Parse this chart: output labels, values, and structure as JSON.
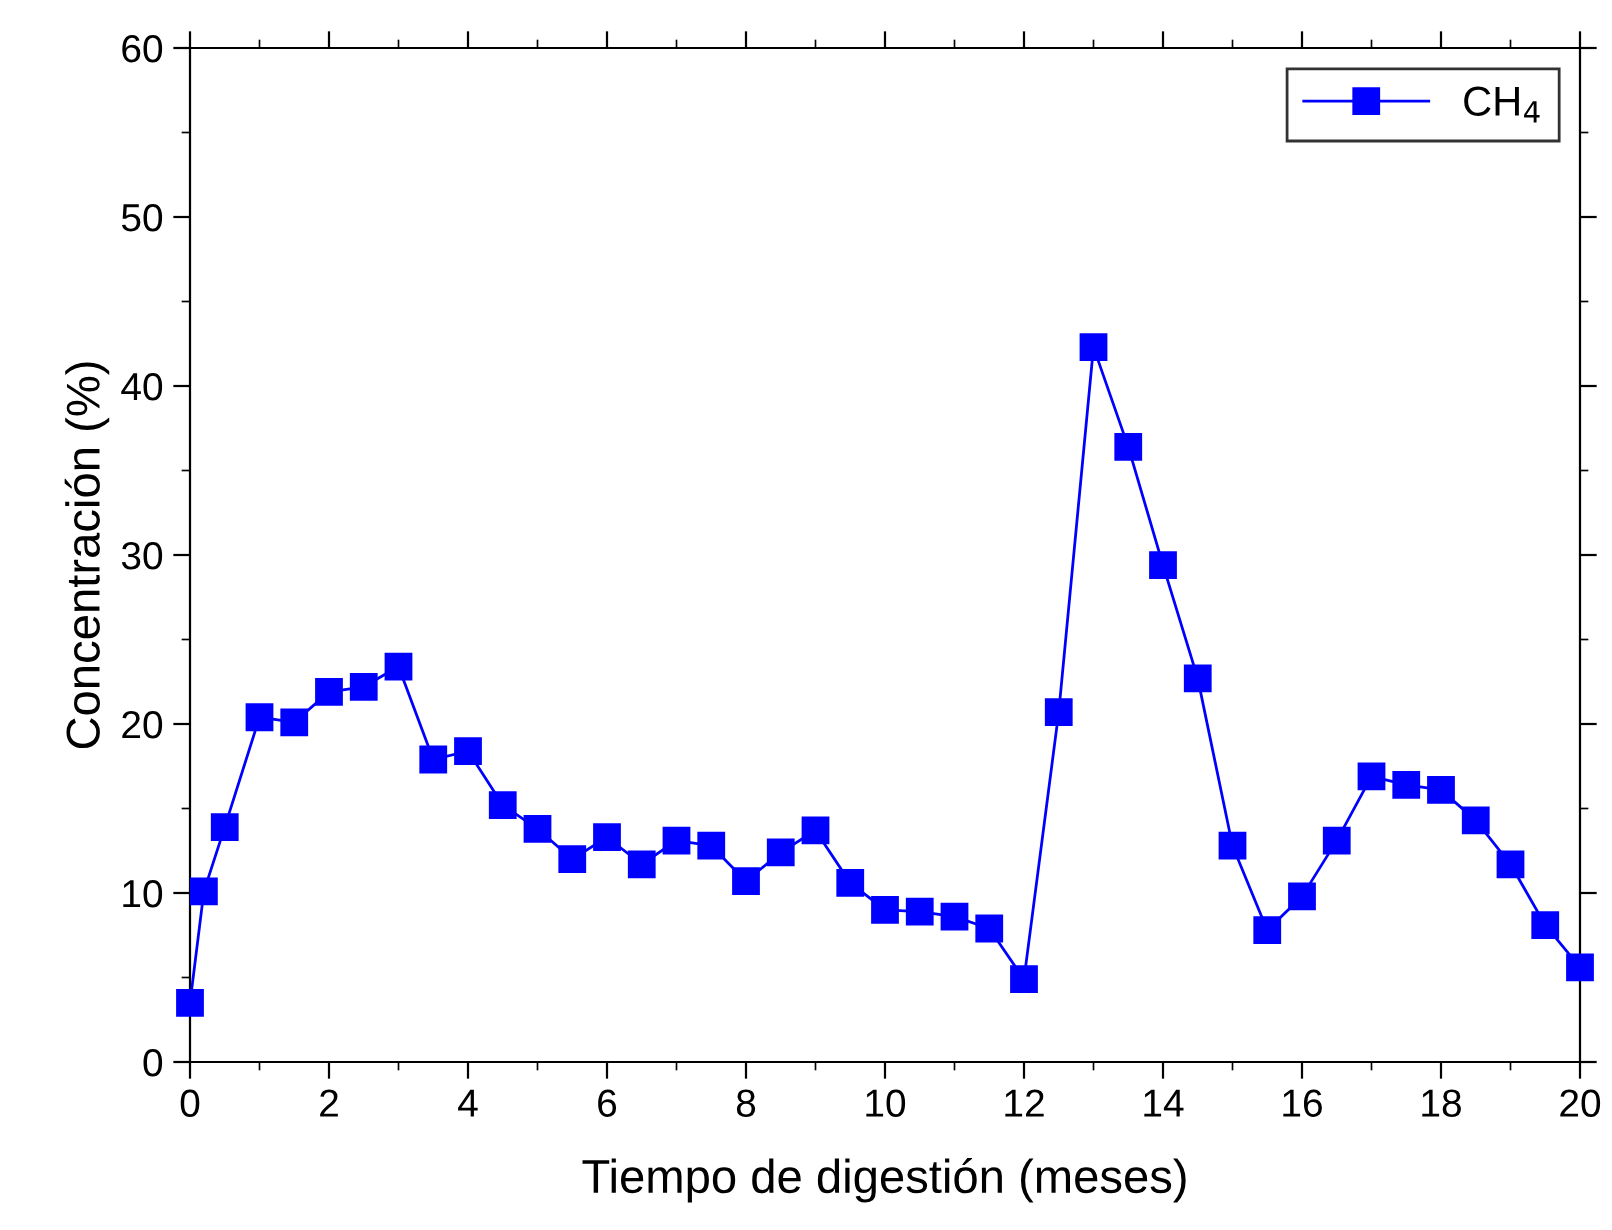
{
  "chart_data": {
    "type": "line",
    "xlabel": "Tiempo de digestión (meses)",
    "ylabel": "Concentración (%)",
    "x": [
      0,
      0.2,
      0.5,
      1,
      1.5,
      2,
      2.5,
      3,
      3.5,
      4,
      4.5,
      5,
      5.5,
      6,
      6.5,
      7,
      7.5,
      8,
      8.5,
      9,
      9.5,
      10,
      10.5,
      11,
      11.5,
      12,
      12.5,
      13,
      13.5,
      14,
      14.5,
      15,
      15.5,
      16,
      16.5,
      17,
      17.5,
      18,
      18.5,
      19,
      19.5,
      20
    ],
    "series": [
      {
        "name": "CH$_{4}$",
        "color": "#0000ff",
        "values": [
          3.5,
          10.1,
          13.9,
          20.4,
          20.1,
          21.9,
          22.2,
          23.4,
          17.9,
          18.4,
          15.2,
          13.8,
          12.0,
          13.3,
          11.7,
          13.1,
          12.8,
          10.7,
          12.4,
          13.7,
          10.6,
          9.0,
          8.9,
          8.6,
          7.9,
          4.9,
          20.7,
          42.3,
          36.4,
          29.4,
          22.7,
          12.8,
          7.8,
          9.8,
          13.1,
          16.9,
          16.4,
          16.1,
          14.3,
          11.7,
          8.1,
          5.6
        ]
      }
    ],
    "xlim": [
      0,
      20
    ],
    "xticks": [
      0,
      2,
      4,
      6,
      8,
      10,
      12,
      14,
      16,
      18,
      20
    ],
    "ylim": [
      0,
      60
    ],
    "yticks": [
      0,
      10,
      20,
      30,
      40,
      50,
      60
    ],
    "marker": "square",
    "line_style": "solid",
    "grid": false,
    "legend": "top right"
  }
}
